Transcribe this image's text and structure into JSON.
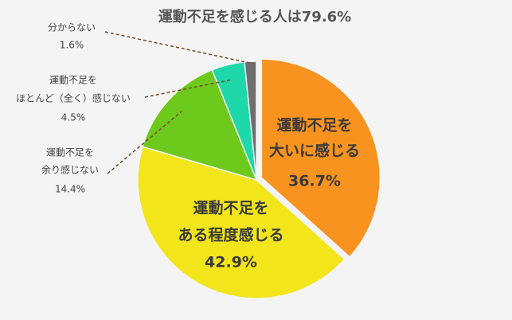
{
  "chart_data": {
    "type": "pie",
    "title": "運動不足を感じる人は79.6%",
    "categories": [
      [
        "運動不足を",
        "大いに感じる"
      ],
      [
        "運動不足を",
        "ある程度感じる"
      ],
      [
        "運動不足を",
        "余り感じない"
      ],
      [
        "運動不足を",
        "ほとんど（全く）感じない"
      ],
      [
        "分からない"
      ]
    ],
    "values": [
      36.7,
      42.9,
      14.4,
      4.5,
      1.6
    ],
    "value_labels": [
      "36.7%",
      "42.9%",
      "14.4%",
      "4.5%",
      "1.6%"
    ],
    "colors": [
      "#f7931e",
      "#f2e51a",
      "#6dc91c",
      "#1fd8aa",
      "#6e6e6e"
    ]
  }
}
